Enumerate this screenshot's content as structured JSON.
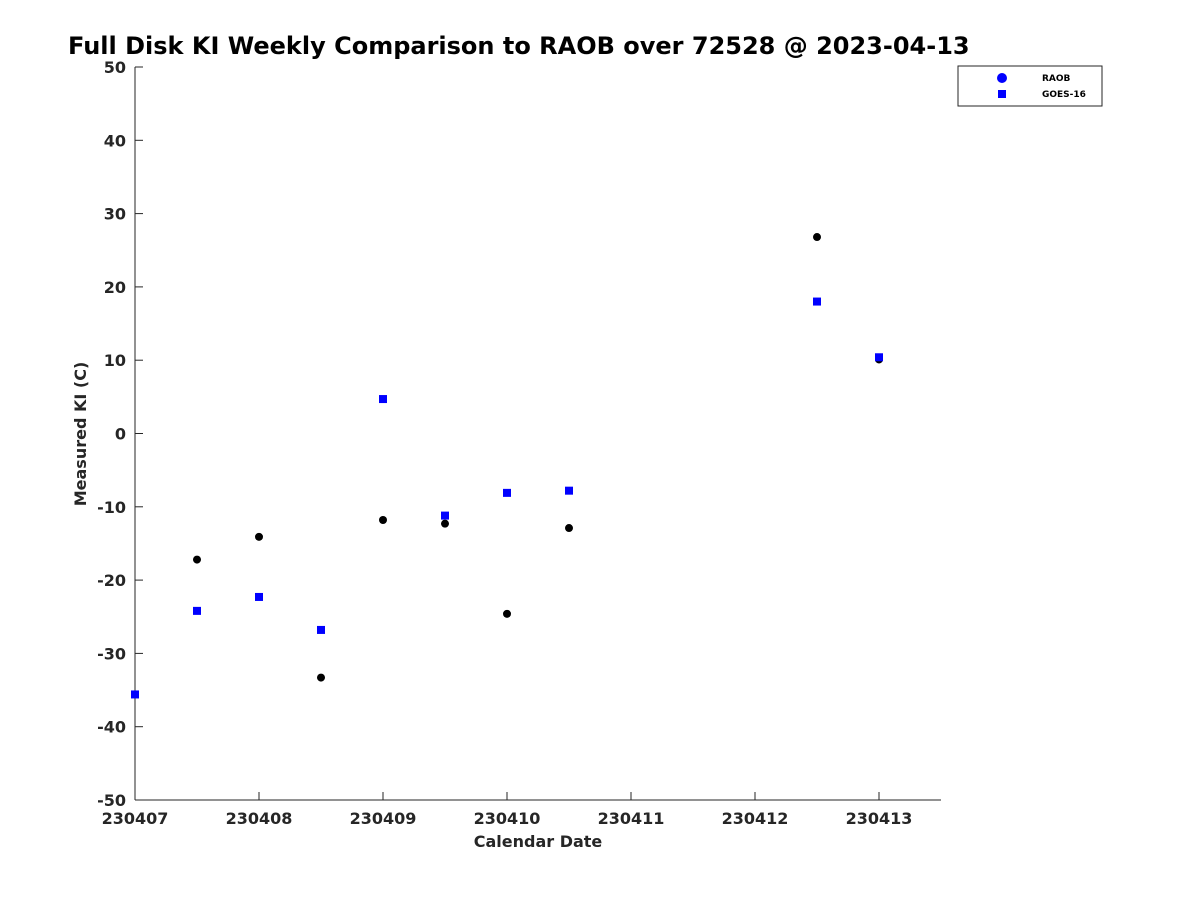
{
  "chart_data": {
    "type": "scatter",
    "title": "Full Disk KI Weekly Comparison to RAOB over 72528 @ 2023-04-13",
    "xlabel": "Calendar Date",
    "ylabel": "Measured KI (C)",
    "xlim": [
      230407,
      230413.5
    ],
    "ylim": [
      -50,
      50
    ],
    "xticks": [
      230407,
      230408,
      230409,
      230410,
      230411,
      230412,
      230413
    ],
    "xtick_labels": [
      "230407",
      "230408",
      "230409",
      "230410",
      "230411",
      "230412",
      "230413"
    ],
    "yticks": [
      -50,
      -40,
      -30,
      -20,
      -10,
      0,
      10,
      20,
      30,
      40,
      50
    ],
    "ytick_labels": [
      "-50",
      "-40",
      "-30",
      "-20",
      "-10",
      "0",
      "10",
      "20",
      "30",
      "40",
      "50"
    ],
    "grid": false,
    "legend_position": "top-right",
    "series": [
      {
        "name": "RAOB",
        "marker": "circle",
        "color": "#000000",
        "legend_color": "#0000ff",
        "x": [
          230407.5,
          230408,
          230408.5,
          230409,
          230409.5,
          230410,
          230410.5,
          230412.5,
          230413
        ],
        "y": [
          -17.2,
          -14.1,
          -33.3,
          -11.8,
          -12.3,
          -24.6,
          -12.9,
          26.8,
          10.1
        ]
      },
      {
        "name": "GOES-16",
        "marker": "square",
        "color": "#0000ff",
        "legend_color": "#0000ff",
        "x": [
          230407,
          230407.5,
          230408,
          230408.5,
          230409,
          230409.5,
          230410,
          230410.5,
          230412.5,
          230413
        ],
        "y": [
          -35.6,
          -24.2,
          -22.3,
          -26.8,
          4.7,
          -11.2,
          -8.1,
          -7.8,
          18.0,
          10.4
        ]
      }
    ]
  }
}
